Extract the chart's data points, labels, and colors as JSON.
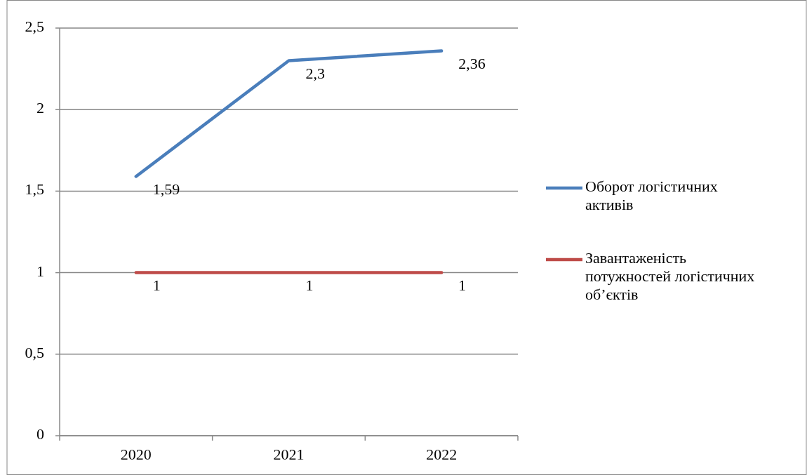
{
  "chart_data": {
    "type": "line",
    "categories": [
      "2020",
      "2021",
      "2022"
    ],
    "series": [
      {
        "name": "Оборот логістичних активів",
        "color": "#4a7ebb",
        "values": [
          1.59,
          2.3,
          2.36
        ],
        "value_labels": [
          "1,59",
          "2,3",
          "2,36"
        ]
      },
      {
        "name": "Завантаженість потужностей логістичних об’єктів",
        "color": "#be4b48",
        "values": [
          1,
          1,
          1
        ],
        "value_labels": [
          "1",
          "1",
          "1"
        ]
      }
    ],
    "ylim": [
      0,
      2.5
    ],
    "yticks": [
      0,
      {
        "value": 0.5,
        "label": "0,5"
      },
      1,
      {
        "value": 1.5,
        "label": "1,5"
      },
      2,
      {
        "value": 2.5,
        "label": "2,5"
      }
    ],
    "grid": "y",
    "legend": "right",
    "marker": "none",
    "line_style": "solid"
  }
}
